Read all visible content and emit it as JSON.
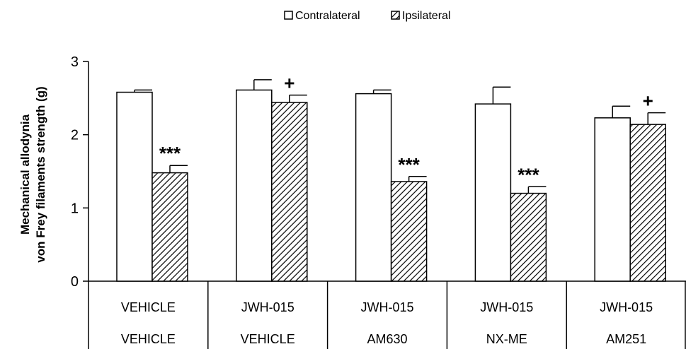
{
  "chart_data": {
    "type": "bar",
    "title": "",
    "ylabel_lines": [
      "Mechanical allodynia",
      "von Frey filaments strength (g)"
    ],
    "ylim": [
      0,
      3
    ],
    "yticks": [
      0,
      1,
      2,
      3
    ],
    "legend": {
      "position": "top-center",
      "entries": [
        "Contralateral",
        "Ipsilateral"
      ]
    },
    "categories_row1": [
      "VEHICLE",
      "JWH-015",
      "JWH-015",
      "JWH-015",
      "JWH-015"
    ],
    "categories_row2": [
      "VEHICLE",
      "VEHICLE",
      "AM630",
      "NX-ME",
      "AM251"
    ],
    "series": [
      {
        "name": "Contralateral",
        "fill": "#ffffff",
        "pattern": "none",
        "values": [
          2.58,
          2.61,
          2.56,
          2.42,
          2.23
        ],
        "errors": [
          0.03,
          0.14,
          0.05,
          0.23,
          0.16
        ]
      },
      {
        "name": "Ipsilateral",
        "fill": "#ffffff",
        "pattern": "diagonal-hatch",
        "values": [
          1.48,
          2.44,
          1.36,
          1.2,
          2.14
        ],
        "errors": [
          0.1,
          0.1,
          0.07,
          0.09,
          0.16
        ]
      }
    ],
    "annotations": [
      "***",
      "+",
      "***",
      "***",
      "+"
    ],
    "grid": false
  }
}
